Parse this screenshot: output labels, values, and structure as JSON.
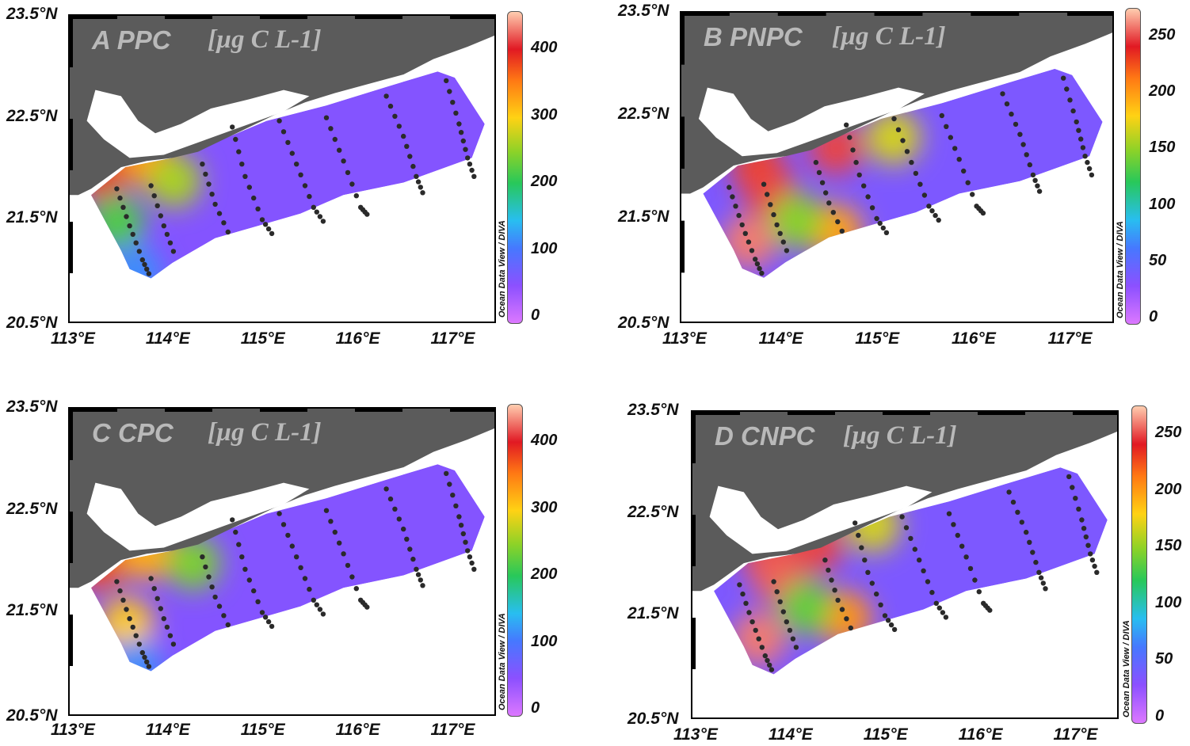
{
  "panels": [
    {
      "letter": "A",
      "variable": "PPC",
      "unit": "[µg C L-1]",
      "lat_labels": [
        "23.5°N",
        "22.5°N",
        "21.5°N",
        "20.5°N"
      ],
      "lon_labels": [
        "113°E",
        "114°E",
        "115°E",
        "116°E",
        "117°E"
      ],
      "colorbar_ticks": [
        "400",
        "300",
        "200",
        "100",
        "0"
      ],
      "colorbar_max": 450,
      "credit": "Ocean Data View / DIVA",
      "hotspots": [
        {
          "lon": 113.3,
          "lat": 22.0,
          "value": 380
        },
        {
          "lon": 113.8,
          "lat": 22.1,
          "value": 330
        },
        {
          "lon": 114.1,
          "lat": 21.9,
          "value": 260
        },
        {
          "lon": 113.5,
          "lat": 21.5,
          "value": 220
        },
        {
          "lon": 113.7,
          "lat": 21.0,
          "value": 120
        }
      ],
      "background_value": 60
    },
    {
      "letter": "B",
      "variable": "PNPC",
      "unit": "[µg C L-1]",
      "lat_labels": [
        "23.5°N",
        "22.5°N",
        "21.5°N",
        "20.5°N"
      ],
      "lon_labels": [
        "113°E",
        "114°E",
        "115°E",
        "116°E",
        "117°E"
      ],
      "colorbar_ticks": [
        "250",
        "200",
        "150",
        "100",
        "50",
        "0"
      ],
      "colorbar_max": 275,
      "credit": "Ocean Data View / DIVA",
      "hotspots": [
        {
          "lon": 114.6,
          "lat": 22.2,
          "value": 250
        },
        {
          "lon": 113.8,
          "lat": 22.0,
          "value": 230
        },
        {
          "lon": 113.9,
          "lat": 21.8,
          "value": 250
        },
        {
          "lon": 113.7,
          "lat": 21.3,
          "value": 260
        },
        {
          "lon": 114.6,
          "lat": 21.4,
          "value": 200
        },
        {
          "lon": 115.2,
          "lat": 22.3,
          "value": 170
        },
        {
          "lon": 114.2,
          "lat": 21.5,
          "value": 150
        }
      ],
      "background_value": 40
    },
    {
      "letter": "C",
      "variable": "CPC",
      "unit": "[µg C L-1]",
      "lat_labels": [
        "23.5°N",
        "22.5°N",
        "21.5°N",
        "20.5°N"
      ],
      "lon_labels": [
        "113°E",
        "114°E",
        "115°E",
        "116°E",
        "117°E"
      ],
      "colorbar_ticks": [
        "400",
        "300",
        "200",
        "100",
        "0"
      ],
      "colorbar_max": 450,
      "credit": "Ocean Data View / DIVA",
      "hotspots": [
        {
          "lon": 113.3,
          "lat": 22.0,
          "value": 370
        },
        {
          "lon": 113.8,
          "lat": 22.1,
          "value": 320
        },
        {
          "lon": 113.6,
          "lat": 21.4,
          "value": 300
        },
        {
          "lon": 114.3,
          "lat": 22.0,
          "value": 240
        },
        {
          "lon": 113.7,
          "lat": 21.0,
          "value": 120
        }
      ],
      "background_value": 60
    },
    {
      "letter": "D",
      "variable": "CNPC",
      "unit": "[µg C L-1]",
      "lat_labels": [
        "23.5°N",
        "22.5°N",
        "21.5°N",
        "20.5°N"
      ],
      "lon_labels": [
        "113°E",
        "114°E",
        "115°E",
        "116°E",
        "117°E"
      ],
      "colorbar_ticks": [
        "250",
        "200",
        "150",
        "100",
        "50",
        "0"
      ],
      "colorbar_max": 275,
      "credit": "Ocean Data View / DIVA",
      "hotspots": [
        {
          "lon": 114.3,
          "lat": 22.2,
          "value": 250
        },
        {
          "lon": 113.8,
          "lat": 22.1,
          "value": 250
        },
        {
          "lon": 113.9,
          "lat": 21.9,
          "value": 255
        },
        {
          "lon": 113.7,
          "lat": 21.3,
          "value": 260
        },
        {
          "lon": 114.6,
          "lat": 21.5,
          "value": 205
        },
        {
          "lon": 114.9,
          "lat": 22.4,
          "value": 170
        },
        {
          "lon": 114.2,
          "lat": 21.6,
          "value": 140
        }
      ],
      "background_value": 40
    }
  ],
  "colors": {
    "land": "#5b5b5b",
    "station": "#2a2a2a",
    "title_text": "#b9b9b9"
  }
}
